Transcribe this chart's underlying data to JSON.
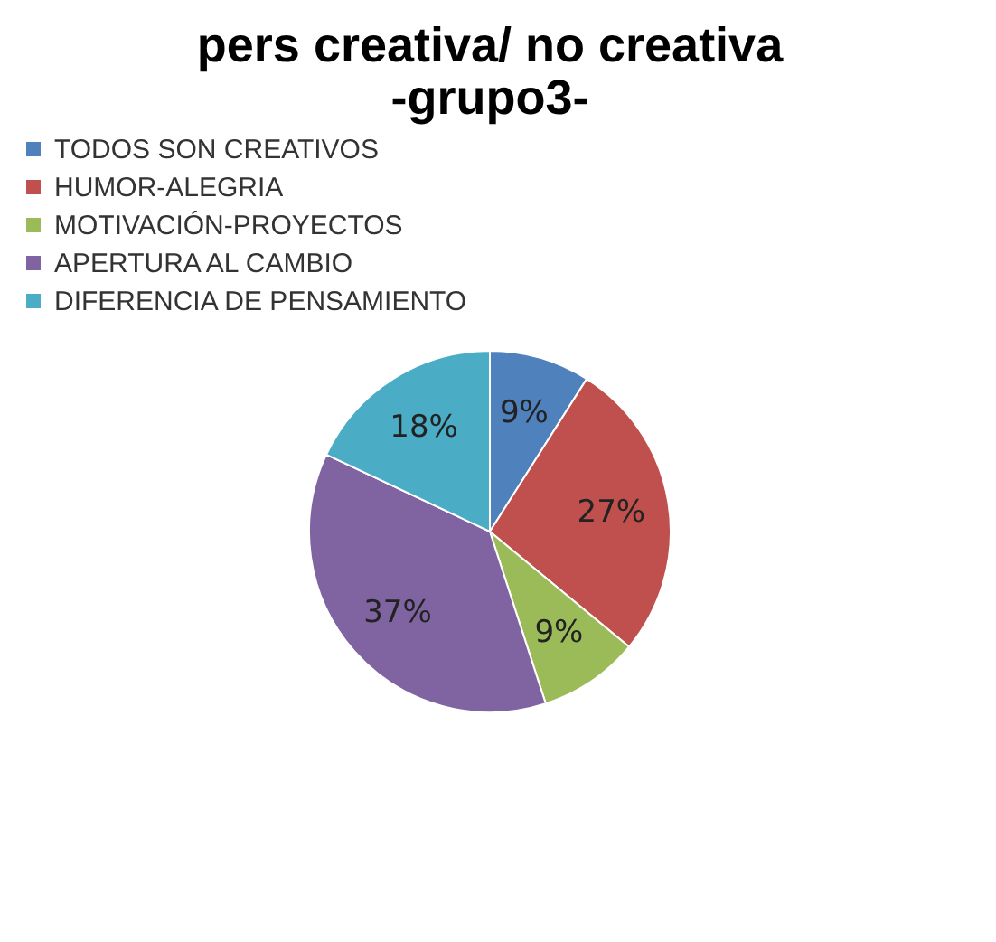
{
  "chart_data": {
    "type": "pie",
    "title": "pers creativa/ no creativa\n-grupo3-",
    "categories": [
      "TODOS SON CREATIVOS",
      "HUMOR-ALEGRIA",
      "MOTIVACIÓN-PROYECTOS",
      "APERTURA AL CAMBIO",
      "DIFERENCIA DE PENSAMIENTO"
    ],
    "values": [
      9,
      27,
      9,
      37,
      18
    ],
    "colors": [
      "#4f81bd",
      "#c0504d",
      "#9bbb59",
      "#8064a2",
      "#4bacc6"
    ],
    "value_labels": [
      "9%",
      "27%",
      "9%",
      "37%",
      "18%"
    ],
    "legend": "top"
  }
}
